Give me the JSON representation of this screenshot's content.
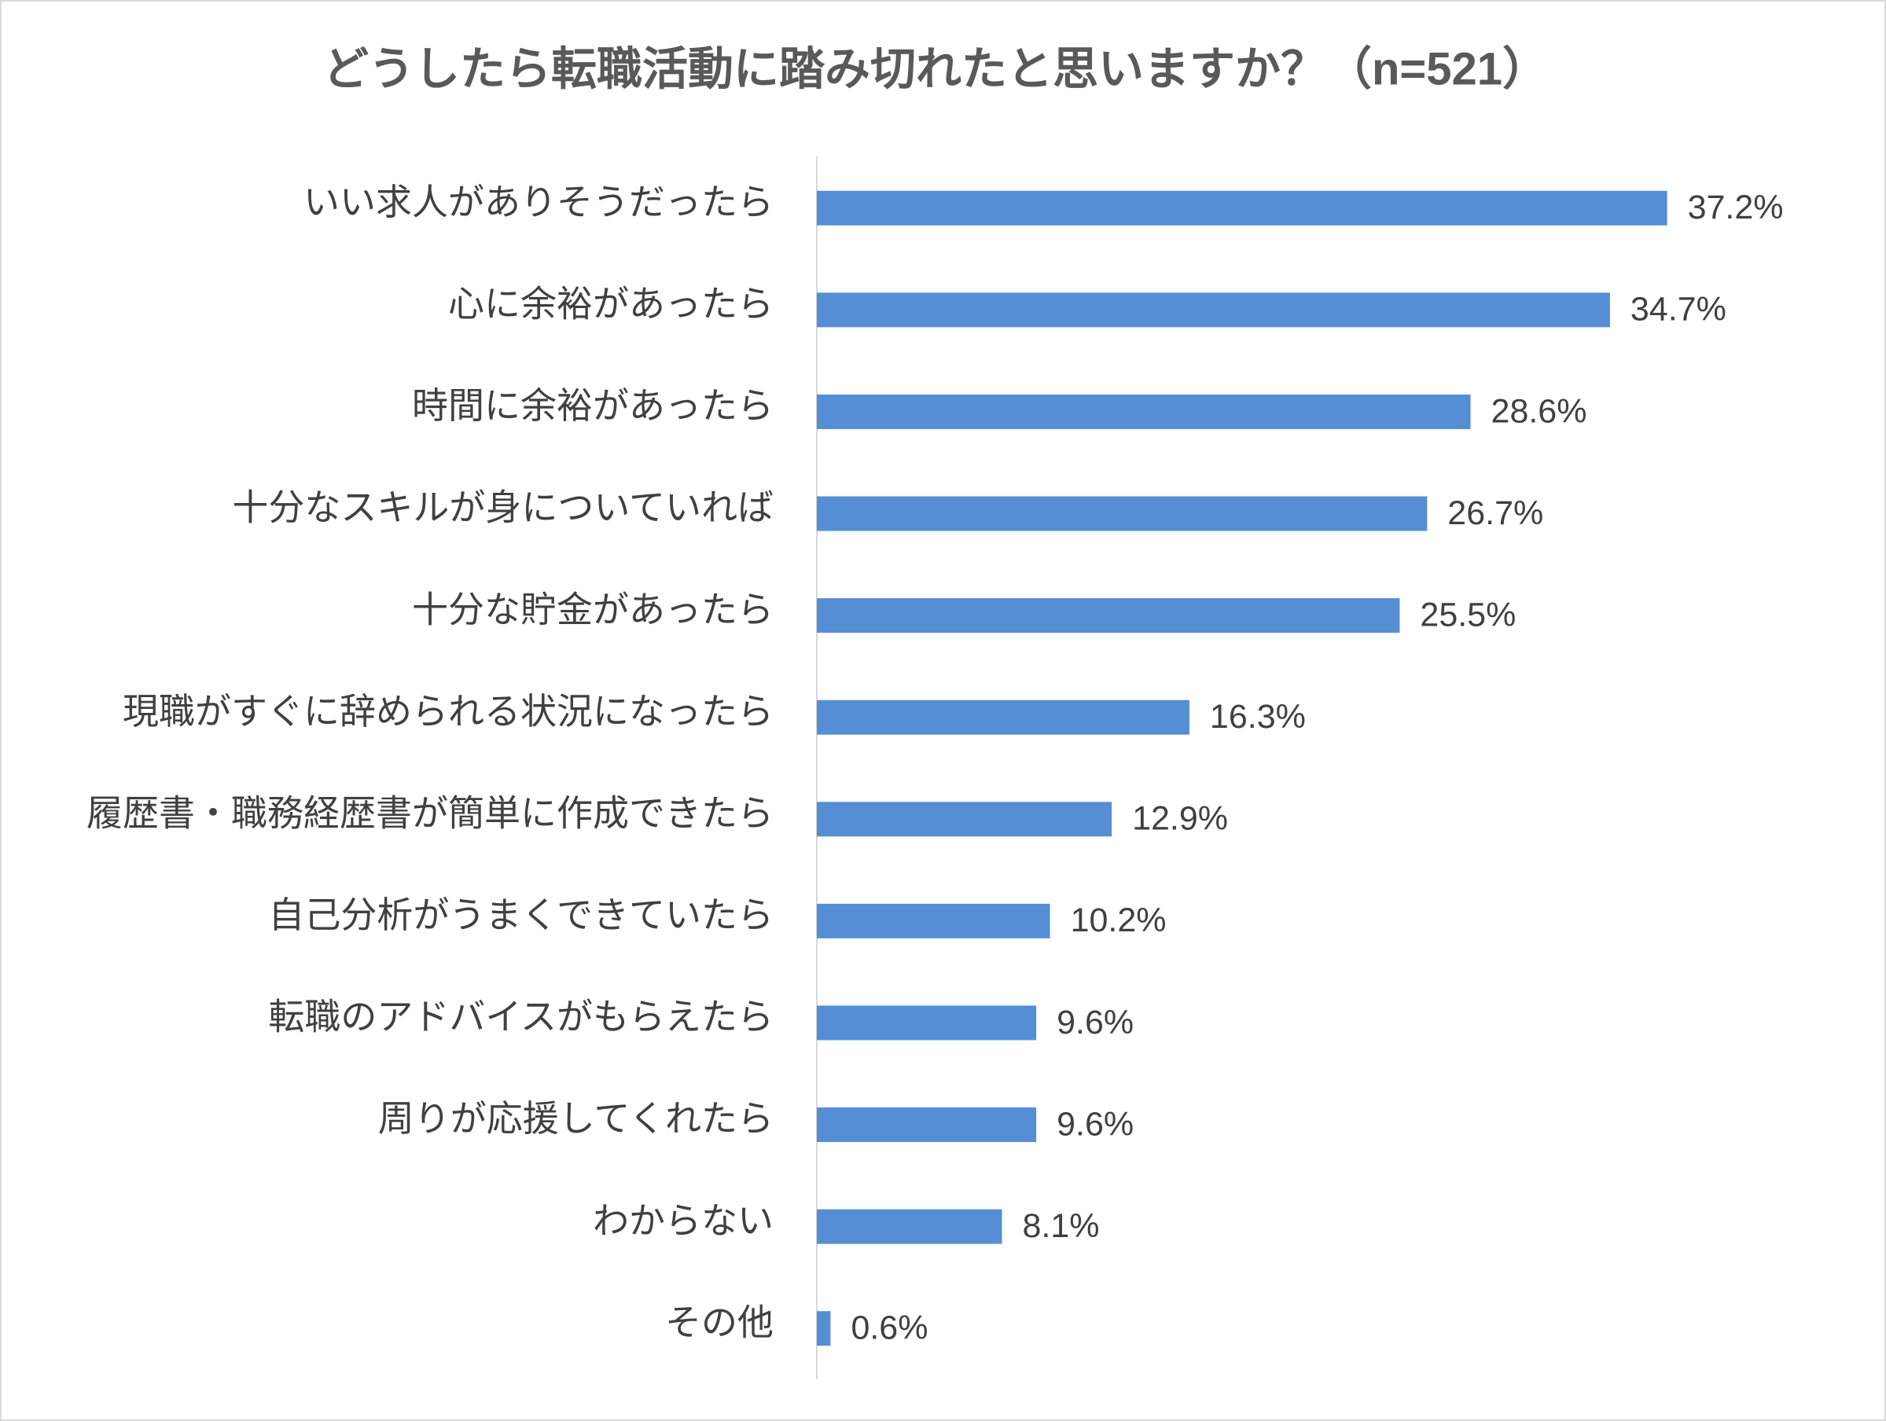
{
  "chart_data": {
    "type": "hbar",
    "title": "どうしたら転職活動に踏み切れたと思いますか？（n=521）",
    "categories": [
      "いい求人がありそうだったら",
      "心に余裕があったら",
      "時間に余裕があったら",
      "十分なスキルが身についていれば",
      "十分な貯金があったら",
      "現職がすぐに辞められる状況になったら",
      "履歴書・職務経歴書が簡単に作成できたら",
      "自己分析がうまくできていたら",
      "転職のアドバイスがもらえたら",
      "周りが応援してくれたら",
      "わからない",
      "その他"
    ],
    "values": [
      37.2,
      34.7,
      28.6,
      26.7,
      25.5,
      16.3,
      12.9,
      10.2,
      9.6,
      9.6,
      8.1,
      0.6
    ],
    "value_labels": [
      "37.2%",
      "34.7%",
      "28.6%",
      "26.7%",
      "25.5%",
      "16.3%",
      "12.9%",
      "10.2%",
      "9.6%",
      "9.6%",
      "8.1%",
      "0.6%"
    ],
    "color": "#558ed5",
    "xlim": [
      0,
      40
    ]
  }
}
